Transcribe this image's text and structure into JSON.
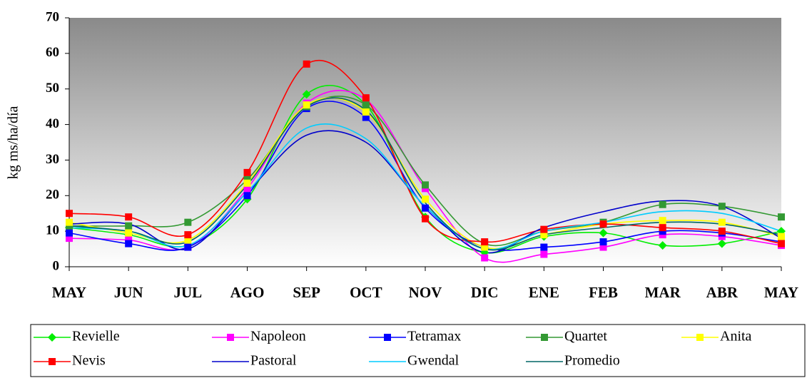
{
  "chart_data": {
    "type": "line",
    "y_label": "kg ms/ha/día",
    "categories": [
      "MAY",
      "JUN",
      "JUL",
      "AGO",
      "SEP",
      "OCT",
      "NOV",
      "DIC",
      "ENE",
      "FEB",
      "MAR",
      "ABR",
      "MAY"
    ],
    "ylim": [
      0,
      70
    ],
    "yticks": [
      0,
      10,
      20,
      30,
      40,
      50,
      60,
      70
    ],
    "smooth": true,
    "legend": "bottom",
    "series": [
      {
        "name": "Revielle",
        "color": "#00ee00",
        "marker": "diamond",
        "values": [
          11,
          9,
          6,
          19,
          48.5,
          45.5,
          14,
          4,
          8.5,
          9.5,
          6,
          6.5,
          10
        ]
      },
      {
        "name": "Napoleon",
        "color": "#ff00ff",
        "marker": "square",
        "values": [
          8,
          7.5,
          5.5,
          22,
          46,
          47,
          22,
          2.5,
          3.5,
          5.5,
          9,
          8.5,
          6
        ]
      },
      {
        "name": "Tetramax",
        "color": "#0000ff",
        "marker": "square",
        "values": [
          9.5,
          6.5,
          5.5,
          20,
          44.5,
          42,
          16.5,
          5.5,
          5.5,
          7,
          10,
          9.5,
          7
        ]
      },
      {
        "name": "Quartet",
        "color": "#339933",
        "marker": "square",
        "values": [
          11.5,
          11.5,
          12.5,
          24.5,
          45,
          45.5,
          23,
          6.5,
          10,
          12.5,
          17.5,
          17,
          14
        ]
      },
      {
        "name": "Anita",
        "color": "#ffff00",
        "marker": "square",
        "values": [
          12.5,
          9.5,
          7.5,
          23.5,
          45.5,
          43.5,
          19,
          5.5,
          9,
          12,
          13,
          12.5,
          8.5
        ]
      },
      {
        "name": "Nevis",
        "color": "#ff0000",
        "marker": "square",
        "values": [
          15,
          14,
          9,
          26.5,
          57,
          47.5,
          13.5,
          7,
          10.5,
          12,
          11,
          10,
          6.5
        ]
      },
      {
        "name": "Pastoral",
        "color": "#0000cc",
        "marker": null,
        "values": [
          12,
          12,
          5,
          21,
          37,
          35,
          17,
          4,
          11,
          15.5,
          18.5,
          17,
          8
        ]
      },
      {
        "name": "Gwendal",
        "color": "#00ccff",
        "marker": null,
        "values": [
          11,
          10,
          6,
          21,
          39,
          36,
          17,
          5,
          10,
          12.5,
          15.5,
          15,
          10
        ]
      },
      {
        "name": "Promedio",
        "color": "#006666",
        "marker": null,
        "values": [
          11.5,
          10,
          7,
          23,
          45,
          44,
          18,
          5,
          9,
          11,
          12.5,
          12,
          9
        ]
      }
    ]
  }
}
